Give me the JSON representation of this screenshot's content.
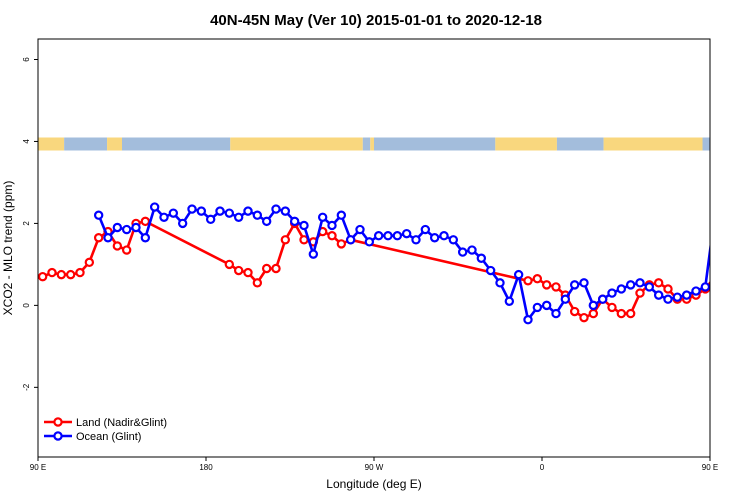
{
  "chart_data": {
    "type": "line",
    "title": "40N-45N May (Ver 10)   2015-01-01 to 2020-12-18",
    "xlabel": "Longitude (deg E)",
    "ylabel": "XCO2 - MLO trend (ppm)",
    "xlim": [
      90,
      450
    ],
    "ylim": [
      -3.7,
      6.5
    ],
    "x_ticks": [
      {
        "value": 90,
        "label": "90 E"
      },
      {
        "value": 180,
        "label": "180"
      },
      {
        "value": 270,
        "label": "90 W"
      },
      {
        "value": 360,
        "label": "0"
      },
      {
        "value": 450,
        "label": "90 E"
      },
      {
        "value": 540,
        "label": "180"
      }
    ],
    "y_ticks": [
      -2,
      0,
      2,
      4,
      6
    ],
    "legend_position": "bottom-left",
    "series": [
      {
        "name": "Land (Nadir&Glint)",
        "color": "#ff0000",
        "x": [
          92.5,
          97.5,
          102.5,
          107.5,
          112.5,
          117.5,
          122.5,
          127.5,
          132.5,
          137.5,
          142.5,
          147.5,
          192.5,
          197.5,
          202.5,
          207.5,
          212.5,
          217.5,
          222.5,
          227.5,
          232.5,
          237.5,
          242.5,
          247.5,
          252.5,
          257.5,
          352.5,
          357.5,
          362.5,
          367.5,
          372.5,
          377.5,
          382.5,
          387.5,
          392.5,
          397.5,
          402.5,
          407.5,
          412.5,
          417.5,
          422.5,
          427.5,
          432.5,
          437.5,
          442.5,
          447.5,
          452.5,
          457.5,
          462.5,
          467.5,
          472.5,
          477.5,
          482.5,
          487.5,
          492.5,
          497.5
        ],
        "y": [
          0.7,
          0.8,
          0.75,
          0.75,
          0.8,
          1.05,
          1.65,
          1.8,
          1.45,
          1.35,
          2.0,
          2.05,
          1.0,
          0.85,
          0.8,
          0.55,
          0.9,
          0.9,
          1.6,
          2.0,
          1.6,
          1.55,
          1.8,
          1.7,
          1.5,
          1.6,
          0.6,
          0.65,
          0.5,
          0.45,
          0.25,
          -0.15,
          -0.3,
          -0.2,
          0.15,
          -0.05,
          -0.2,
          -0.2,
          0.3,
          0.5,
          0.55,
          0.4,
          0.15,
          0.15,
          0.25,
          0.4,
          0.7,
          0.8,
          0.8,
          0.75,
          0.8,
          1.05,
          1.65,
          1.8,
          1.4,
          1.35
        ]
      },
      {
        "name": "Ocean (Glint)",
        "color": "#0000ff",
        "x": [
          122.5,
          127.5,
          132.5,
          137.5,
          142.5,
          147.5,
          152.5,
          157.5,
          162.5,
          167.5,
          172.5,
          177.5,
          182.5,
          187.5,
          192.5,
          197.5,
          202.5,
          207.5,
          212.5,
          217.5,
          222.5,
          227.5,
          232.5,
          237.5,
          242.5,
          247.5,
          252.5,
          257.5,
          262.5,
          267.5,
          272.5,
          277.5,
          282.5,
          287.5,
          292.5,
          297.5,
          302.5,
          307.5,
          312.5,
          317.5,
          322.5,
          327.5,
          332.5,
          337.5,
          342.5,
          347.5,
          352.5,
          357.5,
          362.5,
          367.5,
          372.5,
          377.5,
          382.5,
          387.5,
          392.5,
          397.5,
          402.5,
          407.5,
          412.5,
          417.5,
          422.5,
          427.5,
          432.5,
          437.5,
          442.5,
          447.5,
          452.5,
          457.5,
          462.5,
          467.5,
          472.5,
          477.5,
          482.5,
          487.5,
          492.5,
          497.5
        ],
        "y": [
          2.2,
          1.65,
          1.9,
          1.85,
          1.9,
          1.65,
          2.4,
          2.15,
          2.25,
          2.0,
          2.35,
          2.3,
          2.1,
          2.3,
          2.25,
          2.15,
          2.3,
          2.2,
          2.05,
          2.35,
          2.3,
          2.05,
          1.95,
          1.25,
          2.15,
          1.95,
          2.2,
          1.6,
          1.85,
          1.55,
          1.7,
          1.7,
          1.7,
          1.75,
          1.6,
          1.85,
          1.65,
          1.7,
          1.6,
          1.3,
          1.35,
          1.15,
          0.85,
          0.55,
          0.1,
          0.75,
          -0.35,
          -0.05,
          0.0,
          -0.2,
          0.15,
          0.5,
          0.55,
          0.0,
          0.15,
          0.3,
          0.4,
          0.5,
          0.55,
          0.45,
          0.25,
          0.15,
          0.2,
          0.25,
          0.35,
          0.45,
          2.2,
          1.65,
          1.9,
          1.85,
          1.9,
          1.65,
          2.4,
          2.15,
          2.25,
          2.0
        ]
      }
    ],
    "surface_strip": {
      "y": 3.95,
      "colors": {
        "land": "#f9d77e",
        "ocean": "#a3bddc"
      }
    }
  }
}
